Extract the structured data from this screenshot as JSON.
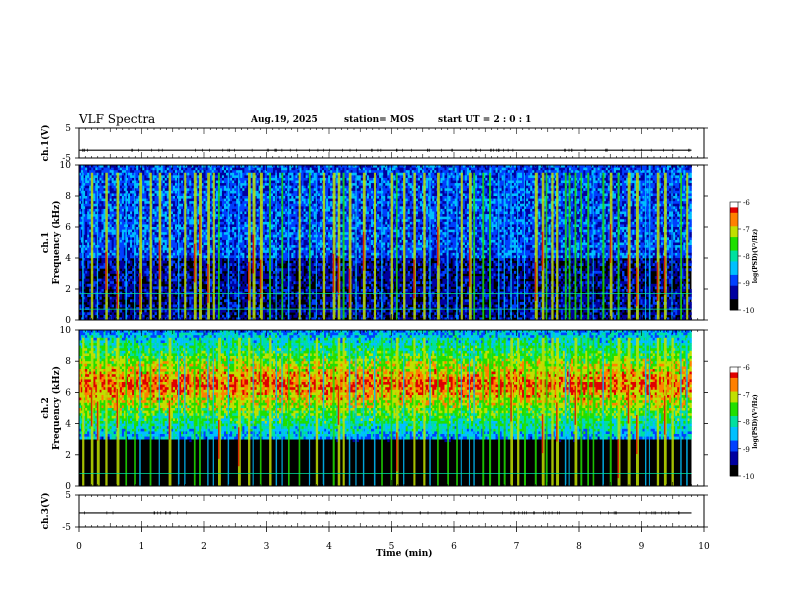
{
  "header": {
    "title": "VLF Spectra",
    "date": "Aug.19, 2025",
    "station": "station= MOS",
    "start": "start UT = 2 : 0 : 1"
  },
  "chart_data": [
    {
      "type": "line",
      "panel": "ch1-waveform",
      "ylabel": "ch.1(V)",
      "ylim": [
        -5,
        5
      ],
      "yticks": [
        "5",
        "-5"
      ],
      "x": [
        0,
        10
      ],
      "values": [
        -2.4,
        -2.4
      ]
    },
    {
      "type": "heatmap",
      "panel": "ch1-spectrogram",
      "ylabel": "ch.1\nFrequency (kHz)",
      "ylim": [
        0,
        10
      ],
      "yticks": [
        "0",
        "2",
        "4",
        "6",
        "8",
        "10"
      ],
      "xlim": [
        0,
        10
      ],
      "colorbar": {
        "label": "log(PSD)(V²/Hz)",
        "range": [
          -10,
          -6
        ],
        "ticks": [
          "-6",
          "-7",
          "-8",
          "-9",
          "-10"
        ]
      },
      "dominant_band_khz": [
        0,
        10
      ],
      "horizontal_lines_khz": [
        0.7,
        1.7
      ]
    },
    {
      "type": "heatmap",
      "panel": "ch2-spectrogram",
      "ylabel": "ch.2\nFrequency (kHz)",
      "ylim": [
        0,
        10
      ],
      "yticks": [
        "0",
        "2",
        "4",
        "6",
        "8",
        "10"
      ],
      "xlim": [
        0,
        10
      ],
      "colorbar": {
        "label": "log(PSD)(V²/Hz)",
        "range": [
          -10,
          -6
        ],
        "ticks": [
          "-6",
          "-7",
          "-8",
          "-9",
          "-10"
        ]
      },
      "dominant_band_khz": [
        4.5,
        8.5
      ],
      "horizontal_lines_khz": [
        0.8
      ]
    },
    {
      "type": "line",
      "panel": "ch3-waveform",
      "ylabel": "ch.3(V)",
      "ylim": [
        -5,
        5
      ],
      "yticks": [
        "5",
        "-5"
      ],
      "x": [
        0,
        10
      ],
      "values": [
        -0.6,
        -0.6
      ]
    }
  ],
  "xaxis": {
    "label": "Time (min)",
    "xlim": [
      0,
      10
    ],
    "ticks": [
      "0",
      "1",
      "2",
      "3",
      "4",
      "5",
      "6",
      "7",
      "8",
      "9",
      "10"
    ]
  },
  "colors": {
    "background": "#000000",
    "axis": "#000000",
    "colormap": [
      "#000000",
      "#0000a0",
      "#0040ff",
      "#00c0ff",
      "#00e0a0",
      "#20e000",
      "#c0e000",
      "#ff8000",
      "#e00000",
      "#ffffff"
    ]
  }
}
